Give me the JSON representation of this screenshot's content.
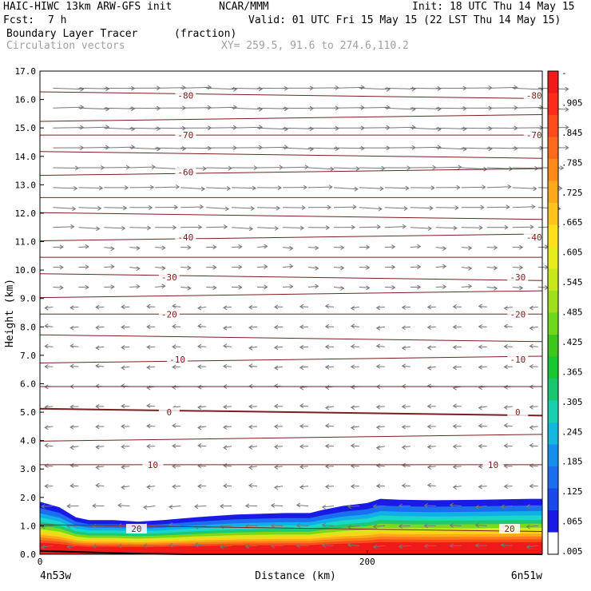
{
  "header": {
    "model_line": "HAIC-HIWC 13km ARW-GFS init",
    "org": "NCAR/MMM",
    "init": "Init: 18 UTC Thu 14 May 15",
    "fcst_label": "Fcst:",
    "fcst_value": "7 h",
    "valid": "Valid: 01 UTC Fri 15 May 15 (22 LST Thu 14 May 15)",
    "field_name": "Boundary Layer Tracer",
    "field_units": "(fraction)",
    "vector_name": "Circulation vectors",
    "xy_range": "XY= 259.5, 91.6 to 274.6,110.2"
  },
  "colors": {
    "isotherm": "#7a1f1f",
    "vector": "#777777",
    "tracer_scale": [
      "#ffffff",
      "#1a1ae6",
      "#1a6ef0",
      "#12aee8",
      "#18d8c8",
      "#20c870",
      "#18c818",
      "#7ed81a",
      "#d8e61a",
      "#ffd21a",
      "#ffa81a",
      "#ff7a1a",
      "#ff4a1a",
      "#f01a1a"
    ]
  },
  "chart_data": {
    "type": "cross-section",
    "xlabel": "Distance (km)",
    "ylabel": "Height (km)",
    "xlim": [
      0,
      307
    ],
    "ylim": [
      0,
      17
    ],
    "x_ticks": [
      0,
      200
    ],
    "y_ticks": [
      "0.0",
      "1.0",
      "2.0",
      "3.0",
      "4.0",
      "5.0",
      "6.0",
      "7.0",
      "8.0",
      "9.0",
      "10.0",
      "11.0",
      "12.0",
      "13.0",
      "14.0",
      "15.0",
      "16.0",
      "17.0"
    ],
    "left_endpoint": "4n53w",
    "right_endpoint": "6n51w",
    "isotherm_labels": [
      {
        "label": "-80",
        "x": [
          89,
          302
        ],
        "y": 16.15
      },
      {
        "label": "-70",
        "x": [
          89,
          302
        ],
        "y": 14.75
      },
      {
        "label": "-60",
        "x": [
          89
        ],
        "y": 13.45
      },
      {
        "label": "-40",
        "x": [
          89,
          302
        ],
        "y": 11.15
      },
      {
        "label": "-30",
        "x": [
          79,
          292
        ],
        "y": 9.75
      },
      {
        "label": "-20",
        "x": [
          79,
          292
        ],
        "y": 8.45
      },
      {
        "label": "-10",
        "x": [
          84,
          292
        ],
        "y": 6.85
      },
      {
        "label": "0",
        "x": [
          79,
          292
        ],
        "y": 5.0
      },
      {
        "label": "10",
        "x": [
          69,
          277
        ],
        "y": 3.15
      },
      {
        "label": "20",
        "x": [
          59,
          287
        ],
        "y": 0.9
      }
    ],
    "tracer_top_height_km": [
      [
        0,
        1.85
      ],
      [
        12,
        1.65
      ],
      [
        22,
        1.3
      ],
      [
        30,
        1.2
      ],
      [
        45,
        1.2
      ],
      [
        60,
        1.15
      ],
      [
        75,
        1.2
      ],
      [
        95,
        1.3
      ],
      [
        120,
        1.4
      ],
      [
        150,
        1.45
      ],
      [
        165,
        1.45
      ],
      [
        172,
        1.55
      ],
      [
        185,
        1.7
      ],
      [
        200,
        1.8
      ],
      [
        208,
        1.95
      ],
      [
        220,
        1.92
      ],
      [
        240,
        1.9
      ],
      [
        270,
        1.92
      ],
      [
        300,
        1.95
      ],
      [
        307,
        1.95
      ]
    ],
    "colorbar_labels": [
      "-",
      ".905",
      ".845",
      ".785",
      ".725",
      ".665",
      ".605",
      ".545",
      ".485",
      ".425",
      ".365",
      ".305",
      ".245",
      ".185",
      ".125",
      ".065",
      ".005"
    ]
  }
}
